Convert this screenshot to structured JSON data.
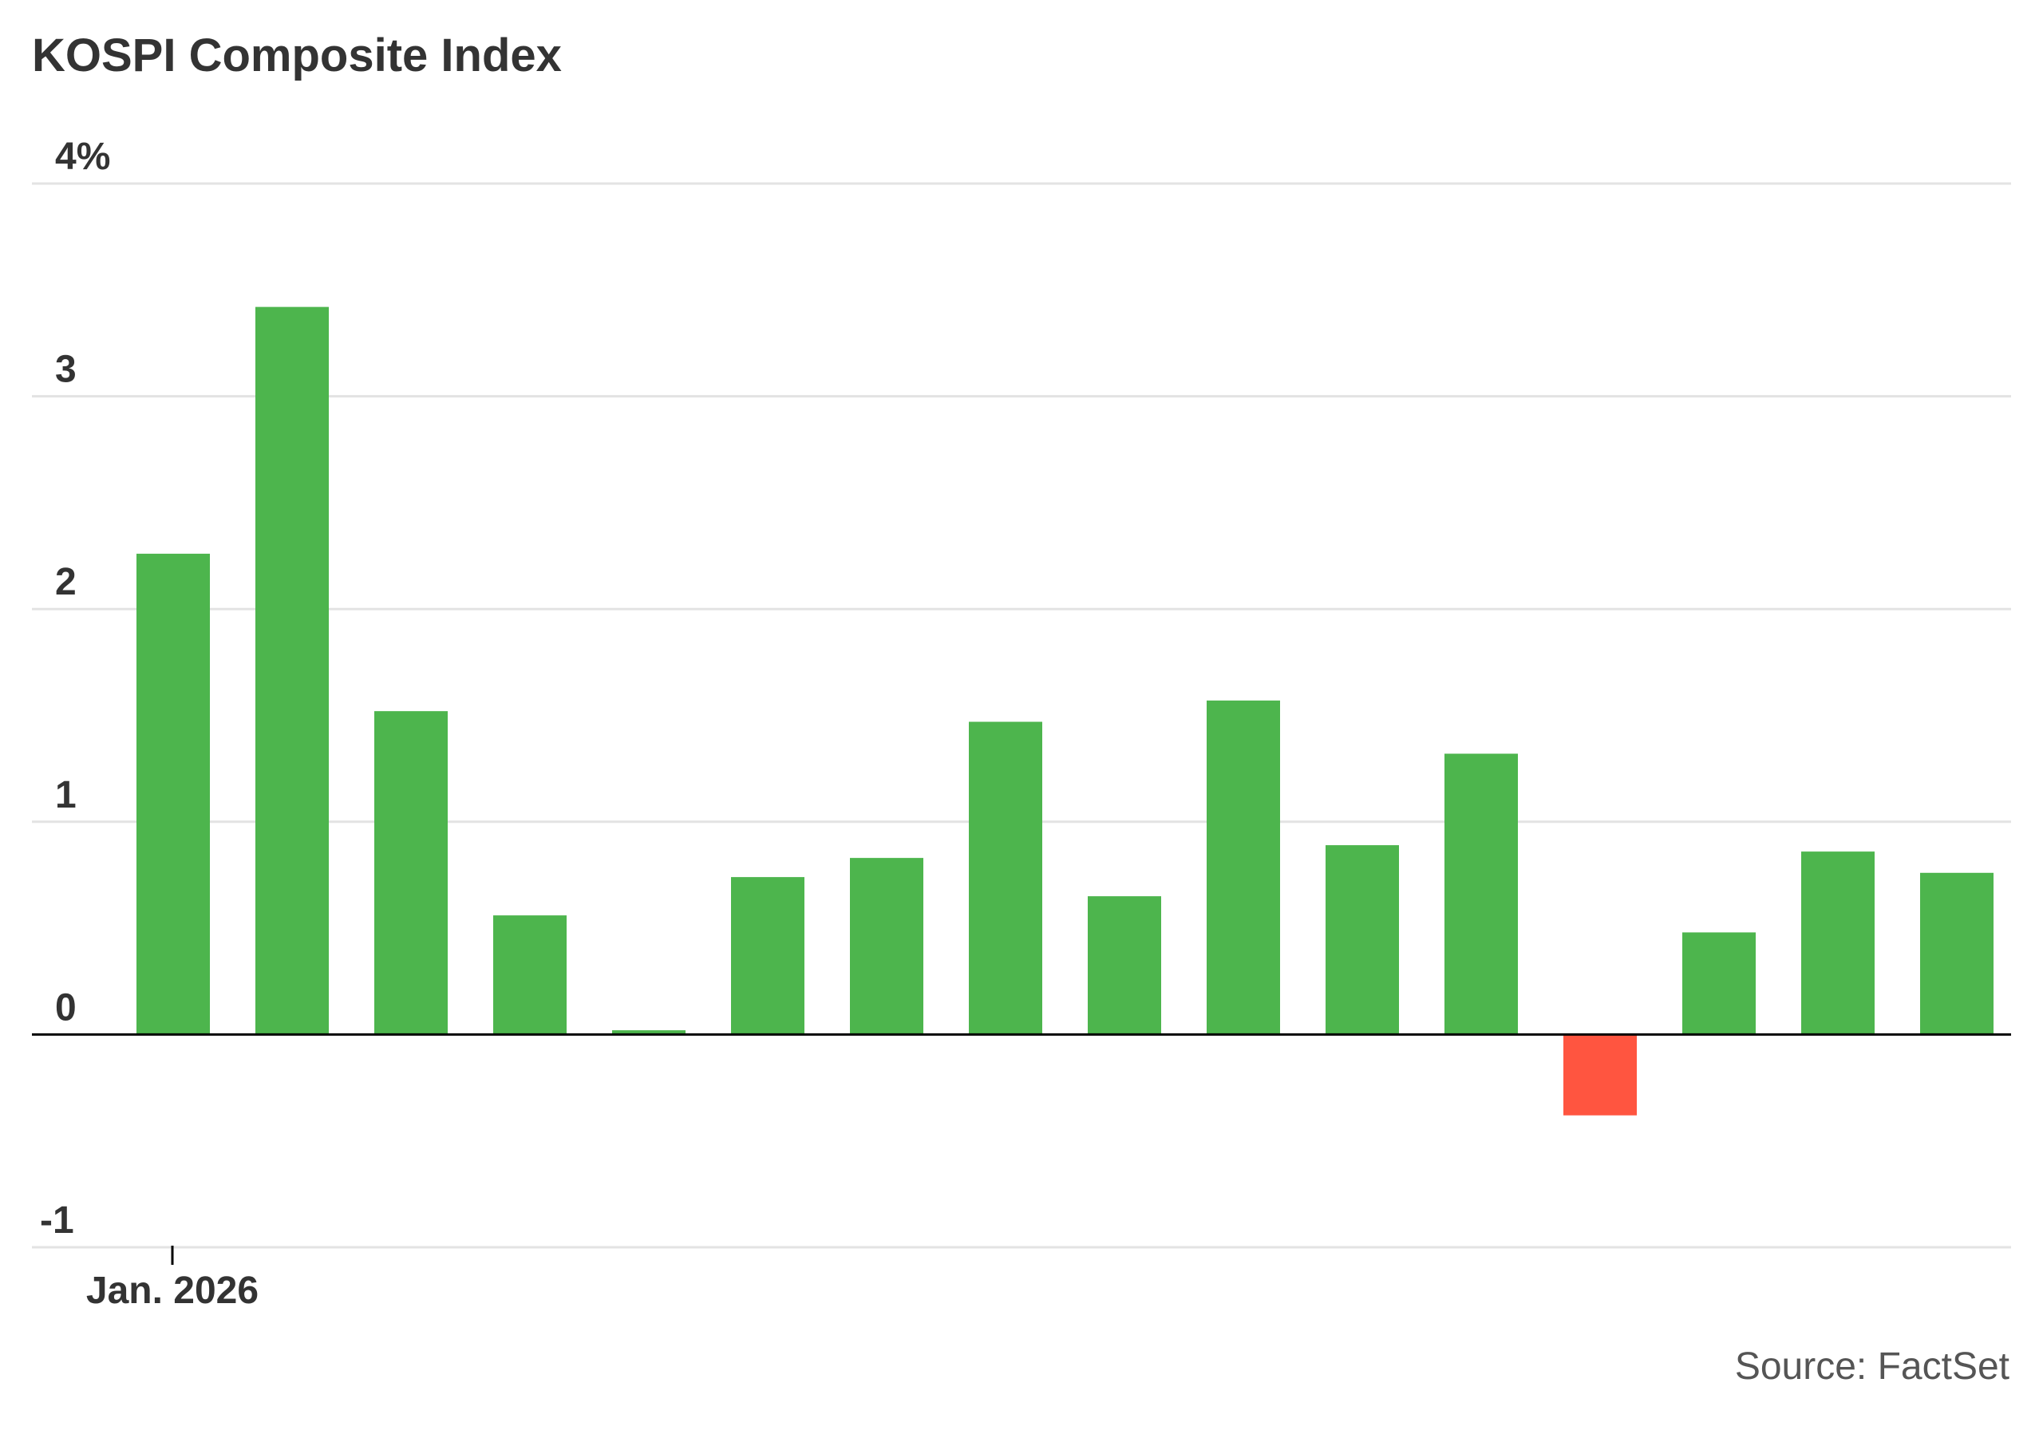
{
  "chart_data": {
    "type": "bar",
    "title": "KOSPI Composite Index",
    "source": "Source: FactSet",
    "xlabel": "",
    "ylabel": "",
    "ylim": [
      -1,
      4
    ],
    "yticks": [
      {
        "value": 4,
        "label": "4%"
      },
      {
        "value": 3,
        "label": "3"
      },
      {
        "value": 2,
        "label": "2"
      },
      {
        "value": 1,
        "label": "1"
      },
      {
        "value": 0,
        "label": "0"
      },
      {
        "value": -1,
        "label": "-1"
      }
    ],
    "xtick": {
      "label": "Jan. 2026",
      "bar_index": 0
    },
    "grid": true,
    "values": [
      2.26,
      3.42,
      1.52,
      0.56,
      0.02,
      0.74,
      0.83,
      1.47,
      0.65,
      1.57,
      0.89,
      1.32,
      -0.38,
      0.48,
      0.86,
      0.76
    ],
    "colors": {
      "positive": "#4db54d",
      "negative": "#ff5540",
      "grid": "#e3e3e3",
      "zero_line": "#000000",
      "text": "#333333",
      "source": "#555555"
    }
  }
}
